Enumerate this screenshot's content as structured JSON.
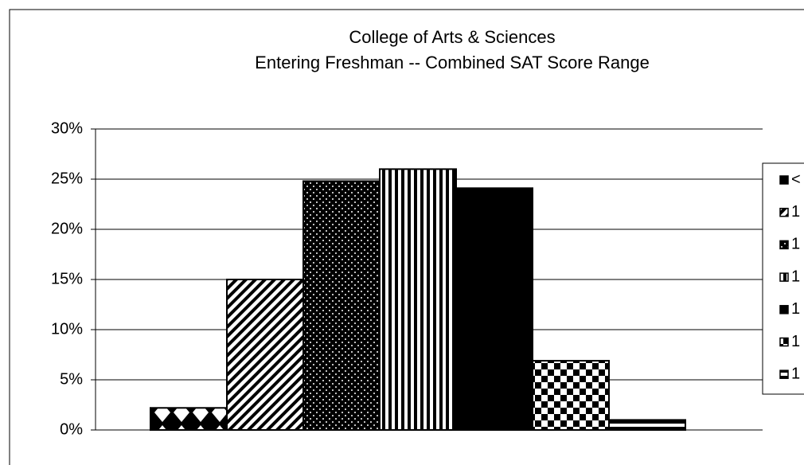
{
  "chart_data": {
    "type": "bar",
    "title": "College of Arts & Sciences",
    "subtitle": "Entering Freshman -- Combined SAT Score Range",
    "series": [
      {
        "name": "<",
        "color": "#000000",
        "pattern": "diamond",
        "values": [
          2.2
        ]
      },
      {
        "name": "1",
        "color": "#000000",
        "pattern": "diagonal",
        "values": [
          15.0
        ]
      },
      {
        "name": "1",
        "color": "#000000",
        "pattern": "dots",
        "values": [
          24.8
        ]
      },
      {
        "name": "1",
        "color": "#000000",
        "pattern": "vertical",
        "values": [
          26.0
        ]
      },
      {
        "name": "1",
        "color": "#000000",
        "pattern": "solid",
        "values": [
          24.1
        ]
      },
      {
        "name": "1",
        "color": "#000000",
        "pattern": "checker",
        "values": [
          6.9
        ]
      },
      {
        "name": "1",
        "color": "#000000",
        "pattern": "horizontal",
        "values": [
          1.0
        ]
      }
    ],
    "ylim": [
      0,
      30
    ],
    "yticks": [
      {
        "value": 0,
        "label": "0%"
      },
      {
        "value": 5,
        "label": "5%"
      },
      {
        "value": 10,
        "label": "10%"
      },
      {
        "value": 15,
        "label": "15%"
      },
      {
        "value": 20,
        "label": "20%"
      },
      {
        "value": 25,
        "label": "25%"
      },
      {
        "value": 30,
        "label": "30%"
      }
    ],
    "grid": true,
    "legend": "right"
  }
}
